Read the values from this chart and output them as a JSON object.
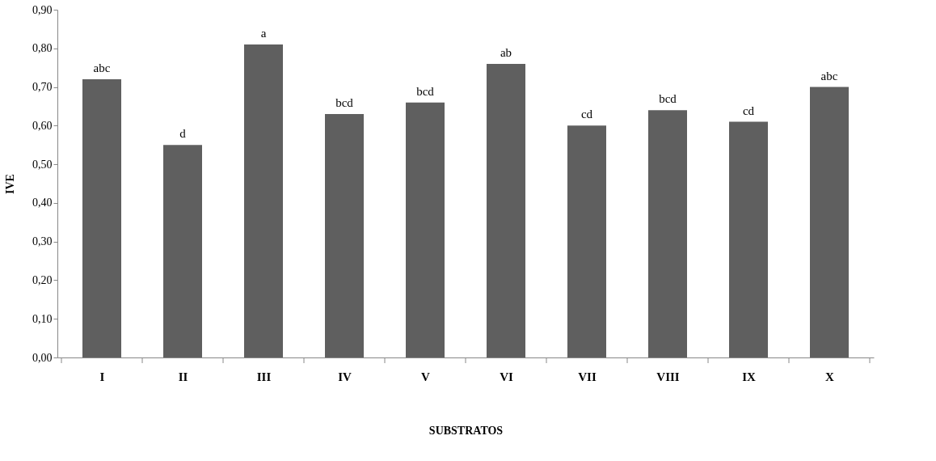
{
  "chart_data": {
    "type": "bar",
    "xlabel": "SUBSTRATOS",
    "ylabel": "IVE",
    "categories": [
      "I",
      "II",
      "III",
      "IV",
      "V",
      "VI",
      "VII",
      "VIII",
      "IX",
      "X"
    ],
    "values": [
      0.72,
      0.55,
      0.81,
      0.63,
      0.66,
      0.76,
      0.6,
      0.64,
      0.61,
      0.7
    ],
    "color": "#5f5f5f",
    "ylim": [
      0,
      0.9
    ],
    "yticks": [
      {
        "value": 0,
        "label": "0,00"
      },
      {
        "value": 0.1,
        "label": "0,10"
      },
      {
        "value": 0.2,
        "label": "0,20"
      },
      {
        "value": 0.3,
        "label": "0,30"
      },
      {
        "value": 0.4,
        "label": "0,40"
      },
      {
        "value": 0.5,
        "label": "0,50"
      },
      {
        "value": 0.6,
        "label": "0,60"
      },
      {
        "value": 0.7,
        "label": "0,70"
      },
      {
        "value": 0.8,
        "label": "0,80"
      },
      {
        "value": 0.9,
        "label": "0,90"
      }
    ],
    "annotations": [
      {
        "text": "abc",
        "x": "I",
        "y": 0.72
      },
      {
        "text": "d",
        "x": "II",
        "y": 0.55
      },
      {
        "text": "a",
        "x": "III",
        "y": 0.81
      },
      {
        "text": "bcd",
        "x": "IV",
        "y": 0.63
      },
      {
        "text": "bcd",
        "x": "V",
        "y": 0.66
      },
      {
        "text": "ab",
        "x": "VI",
        "y": 0.76
      },
      {
        "text": "cd",
        "x": "VII",
        "y": 0.6
      },
      {
        "text": "bcd",
        "x": "VIII",
        "y": 0.64
      },
      {
        "text": "cd",
        "x": "IX",
        "y": 0.61
      },
      {
        "text": "abc",
        "x": "X",
        "y": 0.7
      }
    ],
    "grid": false
  }
}
